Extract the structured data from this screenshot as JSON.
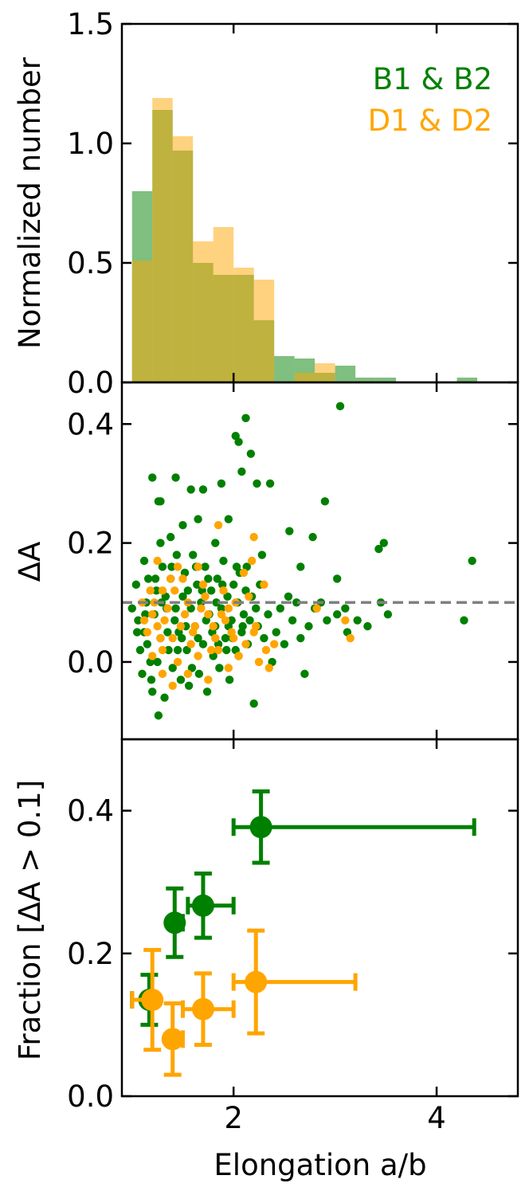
{
  "chart_data": [
    {
      "type": "histogram",
      "panel": "top",
      "ylabel": "Normalized number",
      "xlim": [
        0.9,
        4.8
      ],
      "ylim": [
        0,
        1.5
      ],
      "yticks": [
        0.0,
        0.5,
        1.0,
        1.5
      ],
      "ytick_labels": [
        "0.0",
        "0.5",
        "1.0",
        "1.5"
      ],
      "xticks": [
        2,
        4
      ],
      "bin_edges": [
        1.0,
        1.2,
        1.4,
        1.6,
        1.8,
        2.0,
        2.2,
        2.4,
        2.6,
        2.8,
        3.0,
        3.2,
        3.4,
        3.6,
        3.8,
        4.0,
        4.2,
        4.4
      ],
      "series": [
        {
          "name": "B1 & B2",
          "color": "#008000",
          "values": [
            0.8,
            1.14,
            0.97,
            0.5,
            0.45,
            0.45,
            0.26,
            0.11,
            0.1,
            0.04,
            0.07,
            0.02,
            0.02,
            0.0,
            0.0,
            0.0,
            0.02
          ]
        },
        {
          "name": "D1 & D2",
          "color": "#ffa500",
          "values": [
            0.51,
            1.19,
            1.03,
            0.59,
            0.65,
            0.48,
            0.43,
            0.0,
            0.04,
            0.08,
            0.0,
            0.0,
            0.0,
            0.0,
            0.0,
            0.0,
            0.0
          ]
        }
      ]
    },
    {
      "type": "scatter",
      "panel": "middle",
      "ylabel": "ΔA",
      "xlim": [
        0.9,
        4.8
      ],
      "ylim": [
        -0.13,
        0.47
      ],
      "yticks": [
        0.0,
        0.2,
        0.4
      ],
      "ytick_labels": [
        "0.0",
        "0.2",
        "0.4"
      ],
      "xticks": [
        2,
        4
      ],
      "hline": {
        "y": 0.1,
        "color": "#808080",
        "style": "dashed"
      },
      "series": [
        {
          "name": "B1 & B2",
          "color": "#008000",
          "points": [
            [
              3.05,
              0.43
            ],
            [
              2.12,
              0.41
            ],
            [
              2.02,
              0.38
            ],
            [
              2.05,
              0.37
            ],
            [
              1.58,
              0.29
            ],
            [
              1.7,
              0.29
            ],
            [
              1.88,
              0.3
            ],
            [
              2.08,
              0.32
            ],
            [
              2.17,
              0.35
            ],
            [
              2.23,
              0.3
            ],
            [
              2.36,
              0.3
            ],
            [
              1.2,
              0.31
            ],
            [
              1.26,
              0.27
            ],
            [
              1.28,
              0.27
            ],
            [
              1.43,
              0.31
            ],
            [
              2.9,
              0.27
            ],
            [
              3.48,
              0.2
            ],
            [
              3.43,
              0.19
            ],
            [
              4.35,
              0.17
            ],
            [
              2.78,
              0.21
            ],
            [
              2.55,
              0.22
            ],
            [
              2.66,
              0.16
            ],
            [
              3.02,
              0.14
            ],
            [
              2.28,
              0.18
            ],
            [
              2.13,
              0.16
            ],
            [
              2.03,
              0.16
            ],
            [
              1.95,
              0.24
            ],
            [
              1.82,
              0.2
            ],
            [
              1.65,
              0.24
            ],
            [
              1.5,
              0.23
            ],
            [
              1.38,
              0.21
            ],
            [
              1.28,
              0.2
            ],
            [
              1.12,
              0.17
            ],
            [
              1.0,
              0.09
            ],
            [
              1.04,
              0.13
            ],
            [
              1.06,
              0.07
            ],
            [
              1.08,
              0.02
            ],
            [
              1.1,
              -0.02
            ],
            [
              1.12,
              0.05
            ],
            [
              1.14,
              0.1
            ],
            [
              1.16,
              0.14
            ],
            [
              1.18,
              0.0
            ],
            [
              1.2,
              -0.05
            ],
            [
              1.22,
              0.08
            ],
            [
              1.24,
              0.12
            ],
            [
              1.26,
              -0.09
            ],
            [
              1.28,
              0.04
            ],
            [
              1.3,
              0.16
            ],
            [
              1.32,
              -0.06
            ],
            [
              1.34,
              0.09
            ],
            [
              1.36,
              0.02
            ],
            [
              1.38,
              0.14
            ],
            [
              1.4,
              -0.01
            ],
            [
              1.42,
              0.07
            ],
            [
              1.44,
              0.18
            ],
            [
              1.46,
              0.05
            ],
            [
              1.48,
              -0.03
            ],
            [
              1.5,
              0.11
            ],
            [
              1.52,
              0.15
            ],
            [
              1.54,
              0.02
            ],
            [
              1.56,
              -0.04
            ],
            [
              1.58,
              0.09
            ],
            [
              1.6,
              0.18
            ],
            [
              1.62,
              0.06
            ],
            [
              1.64,
              0.13
            ],
            [
              1.66,
              -0.02
            ],
            [
              1.68,
              0.1
            ],
            [
              1.7,
              0.03
            ],
            [
              1.72,
              0.16
            ],
            [
              1.74,
              -0.05
            ],
            [
              1.76,
              0.08
            ],
            [
              1.78,
              0.12
            ],
            [
              1.8,
              0.01
            ],
            [
              1.82,
              0.06
            ],
            [
              1.84,
              0.14
            ],
            [
              1.86,
              -0.01
            ],
            [
              1.88,
              0.09
            ],
            [
              1.9,
              0.17
            ],
            [
              1.92,
              0.04
            ],
            [
              1.94,
              0.11
            ],
            [
              1.96,
              -0.03
            ],
            [
              1.98,
              0.07
            ],
            [
              2.0,
              0.13
            ],
            [
              2.02,
              0.02
            ],
            [
              2.04,
              0.1
            ],
            [
              2.06,
              0.15
            ],
            [
              2.08,
              0.05
            ],
            [
              2.1,
              0.08
            ],
            [
              2.12,
              0.12
            ],
            [
              2.14,
              0.03
            ],
            [
              2.16,
              0.07
            ],
            [
              2.18,
              0.11
            ],
            [
              2.2,
              -0.07
            ],
            [
              2.22,
              0.09
            ],
            [
              2.24,
              0.06
            ],
            [
              2.26,
              0.13
            ],
            [
              2.3,
              0.04
            ],
            [
              2.34,
              0.08
            ],
            [
              2.38,
              0.0
            ],
            [
              2.42,
              0.05
            ],
            [
              2.46,
              0.09
            ],
            [
              2.5,
              0.03
            ],
            [
              2.54,
              0.11
            ],
            [
              2.58,
              0.07
            ],
            [
              2.62,
              0.1
            ],
            [
              2.66,
              0.04
            ],
            [
              2.7,
              -0.02
            ],
            [
              2.74,
              0.06
            ],
            [
              2.8,
              0.09
            ],
            [
              2.86,
              0.1
            ],
            [
              2.92,
              0.07
            ],
            [
              3.02,
              0.08
            ],
            [
              3.12,
              0.05
            ],
            [
              3.22,
              0.07
            ],
            [
              3.32,
              0.06
            ],
            [
              3.45,
              0.1
            ],
            [
              3.52,
              0.08
            ],
            [
              4.27,
              0.07
            ],
            [
              3.1,
              0.09
            ],
            [
              1.15,
              0.03
            ],
            [
              1.25,
              0.0
            ],
            [
              1.35,
              0.05
            ],
            [
              1.45,
              0.02
            ],
            [
              1.55,
              0.12
            ],
            [
              1.65,
              0.04
            ],
            [
              1.75,
              0.14
            ],
            [
              1.85,
              0.03
            ],
            [
              1.95,
              0.06
            ],
            [
              2.05,
              0.01
            ],
            [
              1.05,
              0.05
            ],
            [
              1.13,
              0.08
            ],
            [
              1.23,
              0.14
            ],
            [
              1.33,
              0.11
            ],
            [
              1.43,
              0.09
            ],
            [
              1.53,
              0.06
            ],
            [
              1.63,
              0.16
            ],
            [
              1.73,
              0.07
            ],
            [
              1.83,
              0.1
            ],
            [
              1.93,
              0.02
            ],
            [
              1.19,
              -0.03
            ],
            [
              1.29,
              0.1
            ],
            [
              1.39,
              0.16
            ],
            [
              1.49,
              0.04
            ],
            [
              1.59,
              -0.01
            ],
            [
              1.69,
              0.12
            ],
            [
              1.79,
              0.05
            ],
            [
              1.89,
              0.13
            ],
            [
              1.99,
              0.04
            ],
            [
              2.09,
              0.06
            ]
          ]
        },
        {
          "name": "D1 & D2",
          "color": "#ffa500",
          "points": [
            [
              1.85,
              0.23
            ],
            [
              2.2,
              0.21
            ],
            [
              1.25,
              0.17
            ],
            [
              1.45,
              0.16
            ],
            [
              1.65,
              0.16
            ],
            [
              2.18,
              0.17
            ],
            [
              1.3,
              0.12
            ],
            [
              1.5,
              0.14
            ],
            [
              1.7,
              0.13
            ],
            [
              1.9,
              0.12
            ],
            [
              2.1,
              0.15
            ],
            [
              2.3,
              0.13
            ],
            [
              1.1,
              0.1
            ],
            [
              1.2,
              0.08
            ],
            [
              1.35,
              0.09
            ],
            [
              1.55,
              0.1
            ],
            [
              1.75,
              0.08
            ],
            [
              1.95,
              0.09
            ],
            [
              2.15,
              0.11
            ],
            [
              1.15,
              0.05
            ],
            [
              1.25,
              0.06
            ],
            [
              1.4,
              0.04
            ],
            [
              1.6,
              0.05
            ],
            [
              1.8,
              0.06
            ],
            [
              2.0,
              0.04
            ],
            [
              2.2,
              0.05
            ],
            [
              2.4,
              0.03
            ],
            [
              1.2,
              0.01
            ],
            [
              1.3,
              0.02
            ],
            [
              1.45,
              0.0
            ],
            [
              1.65,
              0.01
            ],
            [
              1.85,
              0.02
            ],
            [
              2.05,
              0.01
            ],
            [
              2.25,
              0.0
            ],
            [
              1.3,
              -0.02
            ],
            [
              1.4,
              -0.04
            ],
            [
              1.55,
              -0.02
            ],
            [
              1.75,
              -0.03
            ],
            [
              1.95,
              -0.01
            ],
            [
              2.35,
              -0.01
            ],
            [
              2.82,
              0.09
            ],
            [
              3.1,
              0.07
            ],
            [
              3.15,
              0.04
            ],
            [
              1.12,
              0.07
            ],
            [
              1.22,
              0.1
            ],
            [
              1.32,
              0.07
            ],
            [
              1.42,
              0.12
            ],
            [
              1.52,
              0.08
            ],
            [
              1.62,
              0.06
            ],
            [
              1.72,
              0.11
            ],
            [
              1.82,
              0.04
            ],
            [
              1.92,
              0.07
            ],
            [
              2.02,
              0.1
            ],
            [
              2.12,
              0.03
            ],
            [
              2.22,
              0.06
            ],
            [
              2.32,
              0.02
            ],
            [
              1.18,
              0.12
            ],
            [
              1.28,
              0.04
            ],
            [
              1.38,
              0.14
            ],
            [
              1.48,
              0.06
            ],
            [
              1.58,
              0.03
            ],
            [
              1.68,
              0.09
            ],
            [
              1.78,
              0.02
            ],
            [
              1.88,
              0.08
            ],
            [
              1.98,
              0.05
            ]
          ]
        }
      ]
    },
    {
      "type": "errorbar",
      "panel": "bottom",
      "ylabel": "Fraction [ΔA > 0.1]",
      "xlabel": "Elongation a/b",
      "xlim": [
        0.9,
        4.8
      ],
      "ylim": [
        0,
        0.5
      ],
      "yticks": [
        0.0,
        0.2,
        0.4
      ],
      "ytick_labels": [
        "0.0",
        "0.2",
        "0.4"
      ],
      "xticks": [
        2,
        4
      ],
      "xtick_labels": [
        "2",
        "4"
      ],
      "series": [
        {
          "name": "B1 & B2",
          "color": "#008000",
          "points": [
            {
              "x": 1.17,
              "y": 0.135,
              "xerr": [
                0.17,
                0.03
              ],
              "yerr": [
                0.035,
                0.035
              ]
            },
            {
              "x": 1.42,
              "y": 0.243,
              "xerr": [
                0.02,
                0.08
              ],
              "yerr": [
                0.048,
                0.048
              ]
            },
            {
              "x": 1.7,
              "y": 0.267,
              "xerr": [
                0.15,
                0.3
              ],
              "yerr": [
                0.045,
                0.045
              ]
            },
            {
              "x": 2.27,
              "y": 0.377,
              "xerr": [
                0.27,
                2.1
              ],
              "yerr": [
                0.05,
                0.05
              ]
            }
          ]
        },
        {
          "name": "D1 & D2",
          "color": "#ffa500",
          "points": [
            {
              "x": 1.2,
              "y": 0.135,
              "xerr": [
                0.2,
                0.0
              ],
              "yerr": [
                0.07,
                0.07
              ]
            },
            {
              "x": 1.4,
              "y": 0.08,
              "xerr": [
                0.0,
                0.1
              ],
              "yerr": [
                0.05,
                0.05
              ]
            },
            {
              "x": 1.7,
              "y": 0.122,
              "xerr": [
                0.2,
                0.3
              ],
              "yerr": [
                0.05,
                0.05
              ]
            },
            {
              "x": 2.22,
              "y": 0.16,
              "xerr": [
                0.22,
                0.98
              ],
              "yerr": [
                0.072,
                0.072
              ]
            }
          ]
        }
      ]
    }
  ]
}
